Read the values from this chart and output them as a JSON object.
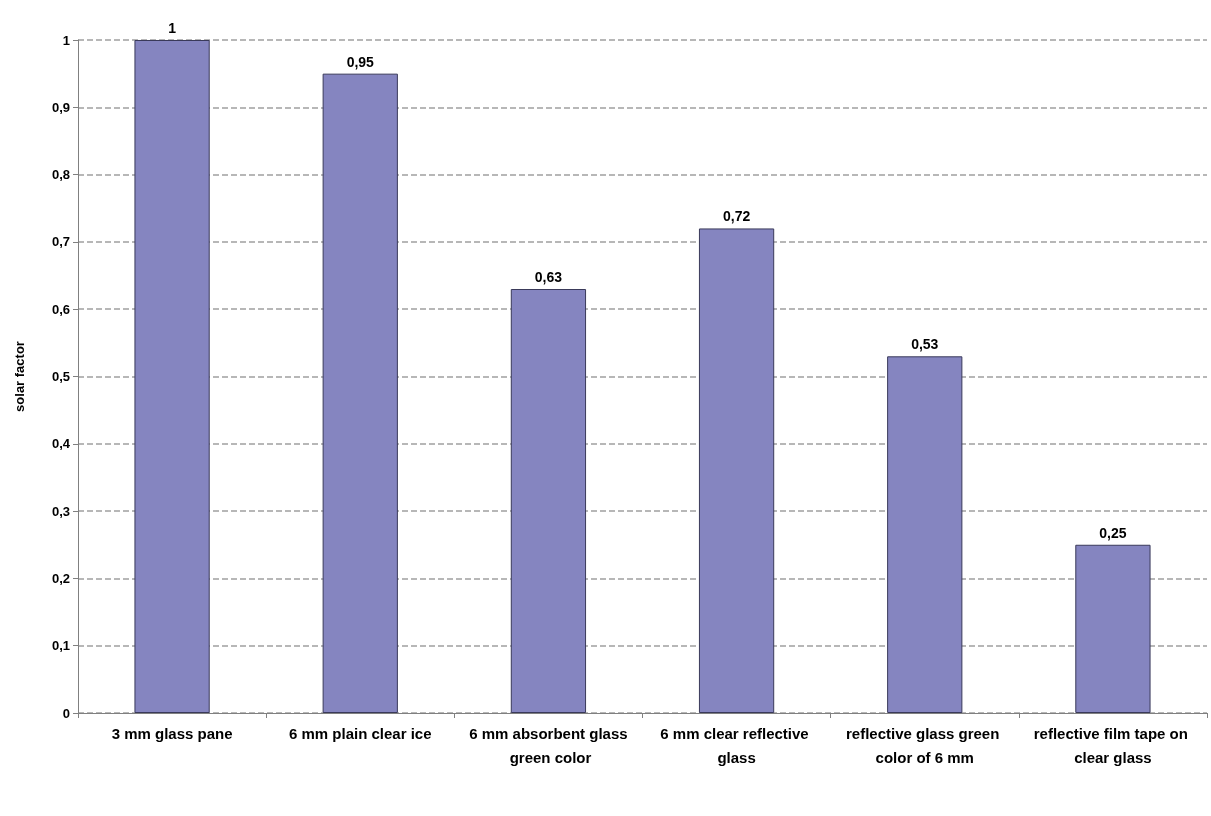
{
  "chart_data": {
    "type": "bar",
    "ylabel": "solar factor",
    "categories": [
      "3 mm glass pane",
      "6 mm plain clear ice",
      "6 mm absorbent glass green color",
      "6 mm clear reflective glass",
      "reflective glass green color of 6 mm",
      "reflective film tape on clear glass"
    ],
    "values": [
      1,
      0.95,
      0.63,
      0.72,
      0.53,
      0.25
    ],
    "value_labels": [
      "1",
      "0,95",
      "0,63",
      "0,72",
      "0,53",
      "0,25"
    ],
    "color": "#8585c0",
    "ylim": [
      0,
      1
    ],
    "yticks": [
      0,
      {
        "value": 0.1,
        "label": "0,1"
      },
      {
        "value": 0.2,
        "label": "0,2"
      },
      {
        "value": 0.3,
        "label": "0,3"
      },
      {
        "value": 0.4,
        "label": "0,4"
      },
      {
        "value": 0.5,
        "label": "0,5"
      },
      {
        "value": 0.6,
        "label": "0,6"
      },
      {
        "value": 0.7,
        "label": "0,7"
      },
      {
        "value": 0.8,
        "label": "0,8"
      },
      {
        "value": 0.9,
        "label": "0,9"
      },
      1
    ],
    "grid": "y"
  }
}
